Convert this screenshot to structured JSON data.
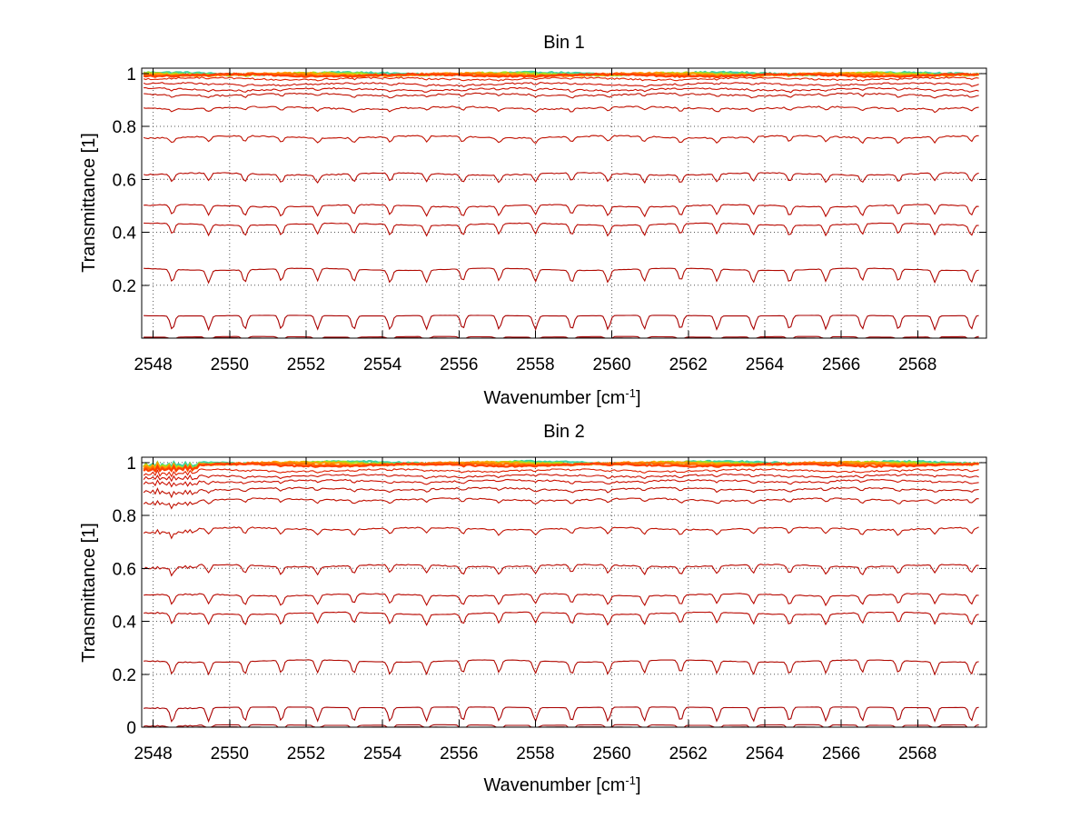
{
  "chart_data": [
    {
      "type": "line",
      "title": "Bin 1",
      "xlabel_base": "Wavenumber [cm",
      "xlabel_sup": "-1",
      "xlabel_close": "]",
      "ylabel": "Transmittance [1]",
      "xlim": [
        2547.7,
        2569.8
      ],
      "ylim": [
        0,
        1.02
      ],
      "xticks": [
        2548,
        2550,
        2552,
        2554,
        2556,
        2558,
        2560,
        2562,
        2564,
        2566,
        2568
      ],
      "xtick_labels": [
        "2548",
        "2550",
        "2552",
        "2554",
        "2556",
        "2558",
        "2560",
        "2562",
        "2564",
        "2566",
        "2568"
      ],
      "yticks": [
        0.2,
        0.4,
        0.6,
        0.8,
        1
      ],
      "ytick_labels": [
        "0.2",
        "0.4",
        "0.6",
        "0.8",
        "1"
      ],
      "grid": true,
      "series": [
        {
          "name": "s1",
          "baseline": 1.0,
          "color": "#40d0a0"
        },
        {
          "name": "s2",
          "baseline": 0.998,
          "color": "#a0e020"
        },
        {
          "name": "s3",
          "baseline": 0.997,
          "color": "#ffa000"
        },
        {
          "name": "s4",
          "baseline": 0.995,
          "color": "#ff7000"
        },
        {
          "name": "s5",
          "baseline": 0.993,
          "color": "#ff4000"
        },
        {
          "name": "s6",
          "baseline": 0.98,
          "color": "#e02000"
        },
        {
          "name": "s7",
          "baseline": 0.96,
          "color": "#cc1000"
        },
        {
          "name": "s8",
          "baseline": 0.94,
          "color": "#cc1000"
        },
        {
          "name": "s9",
          "baseline": 0.92,
          "color": "#c01000"
        },
        {
          "name": "s10",
          "baseline": 0.87,
          "color": "#c01000"
        },
        {
          "name": "s11",
          "baseline": 0.76,
          "color": "#c01000"
        },
        {
          "name": "s12",
          "baseline": 0.62,
          "color": "#b80800"
        },
        {
          "name": "s13",
          "baseline": 0.5,
          "color": "#b80800"
        },
        {
          "name": "s14",
          "baseline": 0.43,
          "color": "#b80800"
        },
        {
          "name": "s15",
          "baseline": 0.26,
          "color": "#b00800"
        },
        {
          "name": "s16",
          "baseline": 0.085,
          "color": "#a80000"
        },
        {
          "name": "s17",
          "baseline": 0.005,
          "color": "#a00000"
        },
        {
          "name": "s18",
          "baseline": 0.0,
          "color": "#800000"
        }
      ]
    },
    {
      "type": "line",
      "title": "Bin 2",
      "xlabel_base": "Wavenumber [cm",
      "xlabel_sup": "-1",
      "xlabel_close": "]",
      "ylabel": "Transmittance [1]",
      "xlim": [
        2547.7,
        2569.8
      ],
      "ylim": [
        0,
        1.02
      ],
      "xticks": [
        2548,
        2550,
        2552,
        2554,
        2556,
        2558,
        2560,
        2562,
        2564,
        2566,
        2568
      ],
      "xtick_labels": [
        "2548",
        "2550",
        "2552",
        "2554",
        "2556",
        "2558",
        "2560",
        "2562",
        "2564",
        "2566",
        "2568"
      ],
      "yticks": [
        0,
        0.2,
        0.4,
        0.6,
        0.8,
        1
      ],
      "ytick_labels": [
        "0",
        "0.2",
        "0.4",
        "0.6",
        "0.8",
        "1"
      ],
      "grid": true,
      "series": [
        {
          "name": "s1",
          "baseline": 1.0,
          "color": "#40d0a0"
        },
        {
          "name": "s2",
          "baseline": 0.998,
          "color": "#a0e020"
        },
        {
          "name": "s3",
          "baseline": 0.997,
          "color": "#ffa000"
        },
        {
          "name": "s4",
          "baseline": 0.994,
          "color": "#ff7000"
        },
        {
          "name": "s5",
          "baseline": 0.99,
          "color": "#ff4000"
        },
        {
          "name": "s6",
          "baseline": 0.97,
          "color": "#e02000"
        },
        {
          "name": "s7",
          "baseline": 0.95,
          "color": "#cc1000"
        },
        {
          "name": "s8",
          "baseline": 0.93,
          "color": "#cc1000"
        },
        {
          "name": "s9",
          "baseline": 0.9,
          "color": "#c01000"
        },
        {
          "name": "s10",
          "baseline": 0.86,
          "color": "#c01000"
        },
        {
          "name": "s11",
          "baseline": 0.75,
          "color": "#c01000"
        },
        {
          "name": "s12",
          "baseline": 0.61,
          "color": "#b80800"
        },
        {
          "name": "s13",
          "baseline": 0.5,
          "color": "#b80800"
        },
        {
          "name": "s14",
          "baseline": 0.43,
          "color": "#b80800"
        },
        {
          "name": "s15",
          "baseline": 0.25,
          "color": "#b00800"
        },
        {
          "name": "s16",
          "baseline": 0.075,
          "color": "#a80000"
        },
        {
          "name": "s17",
          "baseline": 0.008,
          "color": "#a00000"
        },
        {
          "name": "s18",
          "baseline": 0.0,
          "color": "#800000"
        }
      ]
    }
  ]
}
